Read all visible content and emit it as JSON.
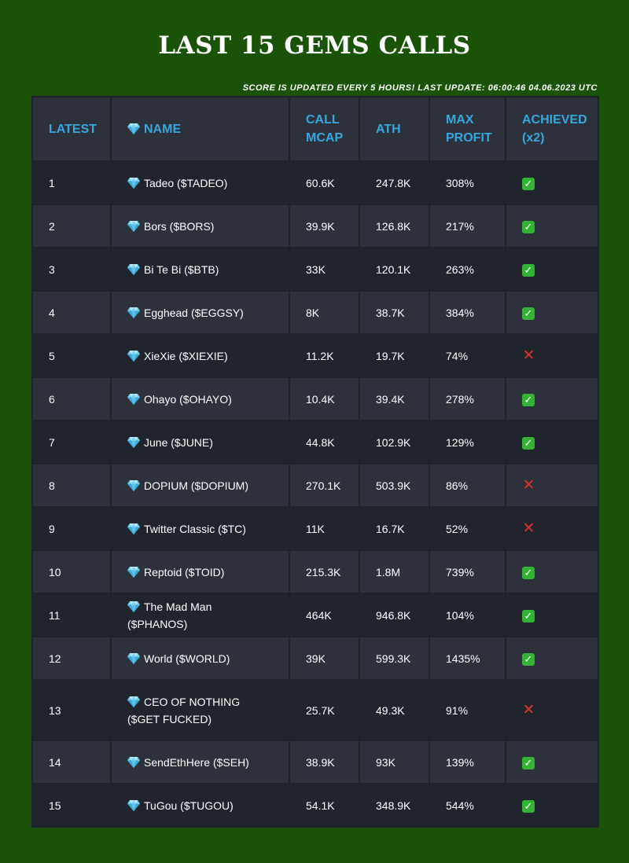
{
  "title": "LAST 15 GEMS CALLS",
  "subtitle": "Score is updated every 5 hours! Last update: 06:00:46 04.06.2023 UTC",
  "colors": {
    "background": "#1a5208",
    "header_text": "#38a7de",
    "row_dark": "#1f242d",
    "row_light": "#2c313b",
    "check": "#34b233",
    "cross": "#e0322b"
  },
  "table": {
    "headers": {
      "latest": "LATEST",
      "name": "NAME",
      "call_mcap": "CALL MCAP",
      "ath": "ATH",
      "max_profit": "MAX PROFIT",
      "achieved": "ACHIEVED (x2)"
    },
    "name_icon": "gem-icon",
    "rows": [
      {
        "latest": "1",
        "name": "Tadeo ($TADEO)",
        "call_mcap": "60.6K",
        "ath": "247.8K",
        "max_profit": "308%",
        "achieved": true
      },
      {
        "latest": "2",
        "name": "Bors ($BORS)",
        "call_mcap": "39.9K",
        "ath": "126.8K",
        "max_profit": "217%",
        "achieved": true
      },
      {
        "latest": "3",
        "name": "Bi Te Bi ($BTB)",
        "call_mcap": "33K",
        "ath": "120.1K",
        "max_profit": "263%",
        "achieved": true
      },
      {
        "latest": "4",
        "name": "Egghead ($EGGSY)",
        "call_mcap": "8K",
        "ath": "38.7K",
        "max_profit": "384%",
        "achieved": true
      },
      {
        "latest": "5",
        "name": "XieXie ($XIEXIE)",
        "call_mcap": "11.2K",
        "ath": "19.7K",
        "max_profit": "74%",
        "achieved": false
      },
      {
        "latest": "6",
        "name": "Ohayo ($OHAYO)",
        "call_mcap": "10.4K",
        "ath": "39.4K",
        "max_profit": "278%",
        "achieved": true
      },
      {
        "latest": "7",
        "name": "June ($JUNE)",
        "call_mcap": "44.8K",
        "ath": "102.9K",
        "max_profit": "129%",
        "achieved": true
      },
      {
        "latest": "8",
        "name": "DOPIUM ($DOPIUM)",
        "call_mcap": "270.1K",
        "ath": "503.9K",
        "max_profit": "86%",
        "achieved": false
      },
      {
        "latest": "9",
        "name": "Twitter Classic ($TC)",
        "call_mcap": "11K",
        "ath": "16.7K",
        "max_profit": "52%",
        "achieved": false
      },
      {
        "latest": "10",
        "name": "Reptoid ($TOID)",
        "call_mcap": "215.3K",
        "ath": "1.8M",
        "max_profit": "739%",
        "achieved": true
      },
      {
        "latest": "11",
        "name": "The Mad Man ($PHANOS)",
        "call_mcap": "464K",
        "ath": "946.8K",
        "max_profit": "104%",
        "achieved": true
      },
      {
        "latest": "12",
        "name": "World ($WORLD)",
        "call_mcap": "39K",
        "ath": "599.3K",
        "max_profit": "1435%",
        "achieved": true
      },
      {
        "latest": "13",
        "name": "CEO OF NOTHING ($GET FUCKED)",
        "call_mcap": "25.7K",
        "ath": "49.3K",
        "max_profit": "91%",
        "achieved": false
      },
      {
        "latest": "14",
        "name": "SendEthHere ($SEH)",
        "call_mcap": "38.9K",
        "ath": "93K",
        "max_profit": "139%",
        "achieved": true
      },
      {
        "latest": "15",
        "name": "TuGou ($TUGOU)",
        "call_mcap": "54.1K",
        "ath": "348.9K",
        "max_profit": "544%",
        "achieved": true
      }
    ]
  }
}
